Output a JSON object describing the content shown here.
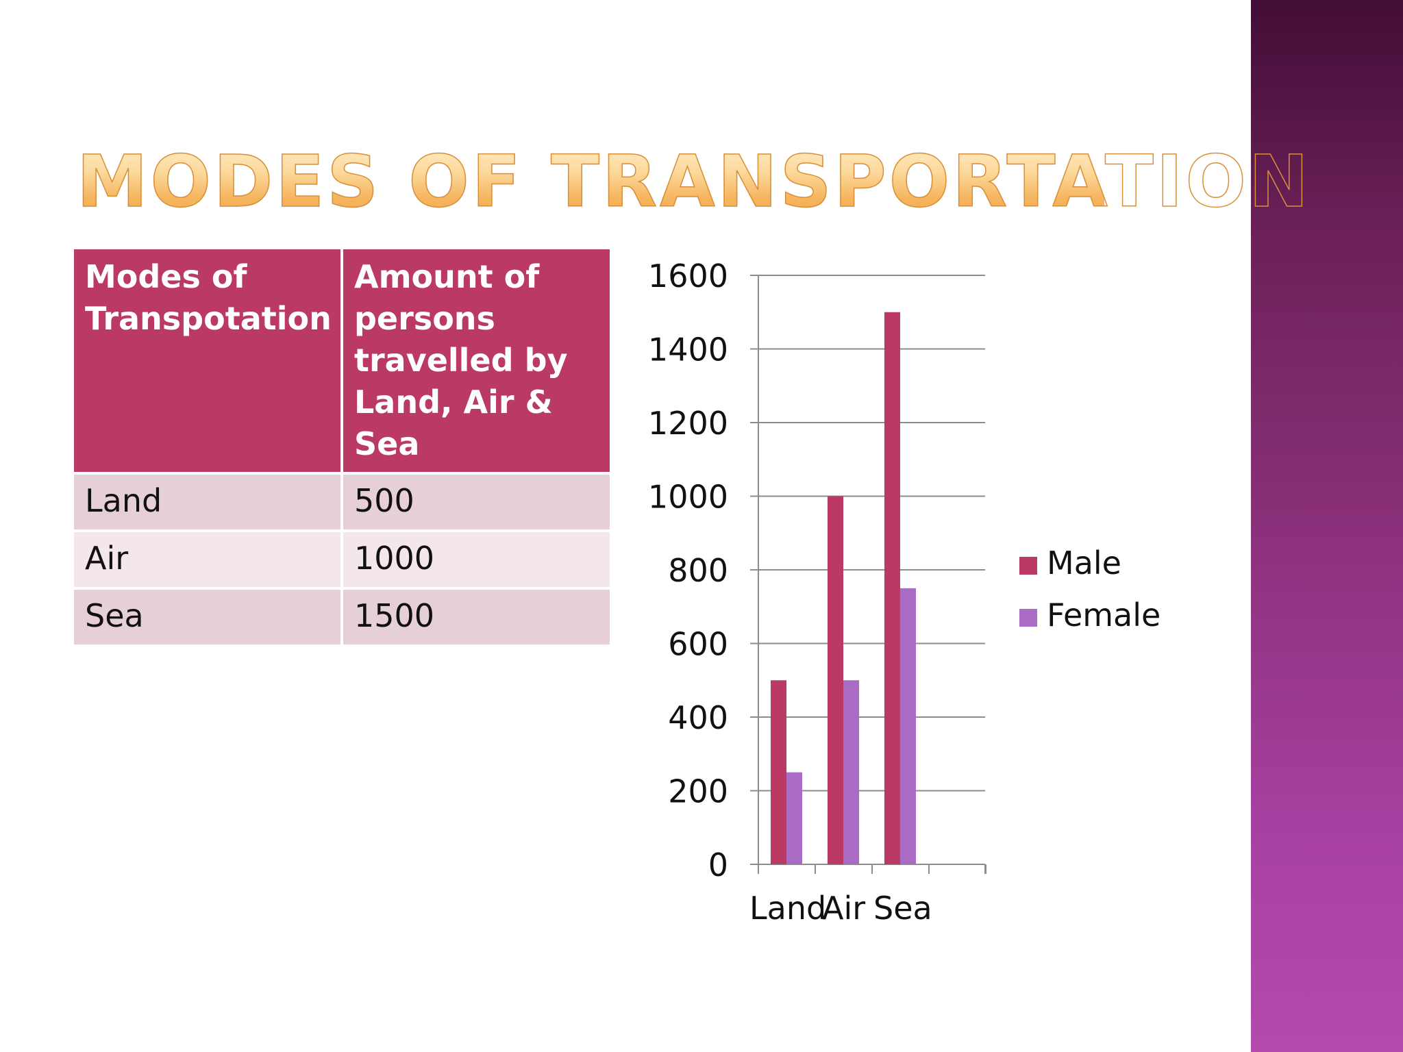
{
  "slide": {
    "title": "Modes of Transportation"
  },
  "table": {
    "headers": [
      "Modes of Transpotation",
      "Amount of persons travelled by Land, Air & Sea"
    ],
    "rows": [
      [
        "Land",
        "500"
      ],
      [
        "Air",
        "1000"
      ],
      [
        "Sea",
        "1500"
      ]
    ]
  },
  "colors": {
    "accent": "#ba3a64",
    "male": "#ba3a64",
    "female": "#a96bc4",
    "title_gold": "#f5b45d"
  },
  "chart_data": {
    "type": "bar",
    "categories": [
      "Land",
      "Air",
      "Sea"
    ],
    "series": [
      {
        "name": "Male",
        "values": [
          500,
          1000,
          1500
        ]
      },
      {
        "name": "Female",
        "values": [
          250,
          500,
          750
        ]
      }
    ],
    "yticks": [
      "0",
      "200",
      "400",
      "600",
      "800",
      "1000",
      "1200",
      "1400",
      "1600"
    ],
    "ylim": [
      0,
      1600
    ],
    "grid": true,
    "legend": "right",
    "title": "",
    "xlabel": "",
    "ylabel": ""
  }
}
